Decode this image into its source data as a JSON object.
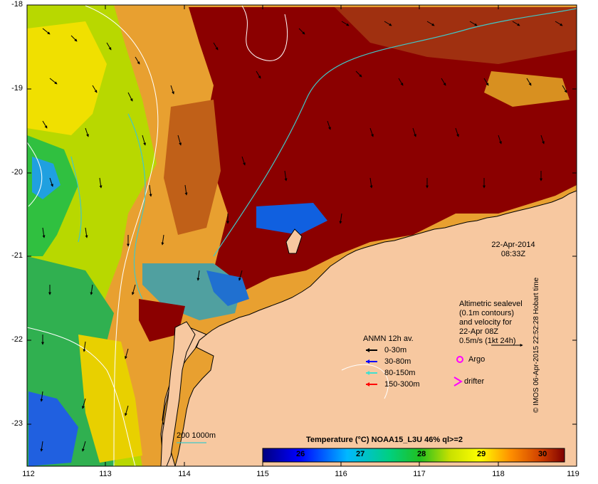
{
  "map": {
    "lat_ticks": [
      "-18",
      "-19",
      "-20",
      "-21",
      "-22",
      "-23"
    ],
    "lon_ticks": [
      "112",
      "113",
      "114",
      "115",
      "116",
      "117",
      "118",
      "119"
    ],
    "date_line1": "22-Apr-2014",
    "date_line2": "08:33Z",
    "altimetric_note": [
      "Altimetric sealevel",
      "(0.1m contours)",
      "and velocity for",
      "22-Apr 08Z",
      "0.5m/s (1kt 24h)"
    ],
    "legend_title": "ANMN 12h av.",
    "legend_items": [
      {
        "label": "0-30m",
        "color": "#000000"
      },
      {
        "label": "30-80m",
        "color": "#0000ff"
      },
      {
        "label": "80-150m",
        "color": "#40e0d0"
      },
      {
        "label": "150-300m",
        "color": "#ff0000"
      }
    ],
    "argo_label": "Argo",
    "drifter_label": "drifter",
    "depth_contours_label": "200  1000m",
    "colorbar_title": "Temperature (°C) NOAA15_L3U 46% ql>=2",
    "colorbar_ticks": [
      "26",
      "27",
      "28",
      "29",
      "30"
    ],
    "colorbar_range": [
      25.5,
      30.3
    ],
    "credit": "© IMOS 06-Apr-2015 22:52:28 Hobart time",
    "colors": {
      "land": "#f7c8a0",
      "hot": "#8b0000",
      "argo": "#ff00ff",
      "current": "#40c8c8"
    }
  }
}
